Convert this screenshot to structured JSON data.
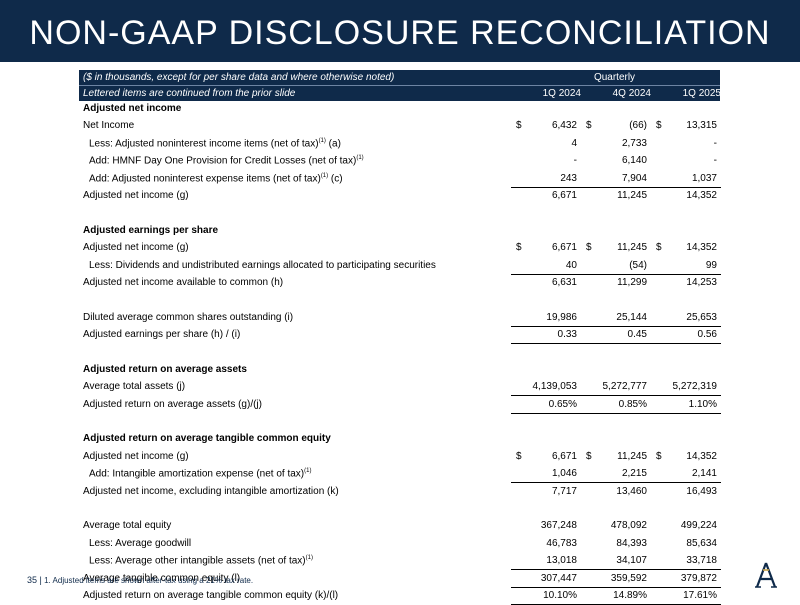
{
  "title": "NON-GAAP DISCLOSURE RECONCILIATION",
  "header": {
    "note1": "($ in thousands, except for per share data and where otherwise noted)",
    "note2": "Lettered items are continued from the prior slide",
    "group_label": "Quarterly",
    "columns": [
      "1Q 2024",
      "4Q 2024",
      "1Q 2025"
    ]
  },
  "rows": [
    {
      "label": "Adjusted net income",
      "bold": true
    },
    {
      "label": "Net Income",
      "cur": "$",
      "values": [
        "6,432",
        "(66)",
        "13,315"
      ]
    },
    {
      "label": "Less: Adjusted noninterest income items (net of tax)",
      "sup": "(1)",
      "suffix": " (a)",
      "indent": true,
      "values": [
        "4",
        "2,733",
        "-"
      ]
    },
    {
      "label": "Add: HMNF Day One Provision for Credit Losses (net of tax)",
      "sup": "(1)",
      "indent": true,
      "values": [
        "-",
        "6,140",
        "-"
      ]
    },
    {
      "label": "Add: Adjusted noninterest expense items (net of tax)",
      "sup": "(1)",
      "suffix": " (c)",
      "indent": true,
      "values": [
        "243",
        "7,904",
        "1,037"
      ],
      "underline": true
    },
    {
      "label": "Adjusted net income (g)",
      "values": [
        "6,671",
        "11,245",
        "14,352"
      ]
    },
    {
      "label": ""
    },
    {
      "label": "Adjusted earnings per share",
      "bold": true
    },
    {
      "label": "Adjusted net income (g)",
      "cur": "$",
      "values": [
        "6,671",
        "11,245",
        "14,352"
      ]
    },
    {
      "label": "Less: Dividends and undistributed earnings allocated to participating securities",
      "indent": true,
      "values": [
        "40",
        "(54)",
        "99"
      ],
      "underline": true
    },
    {
      "label": "Adjusted net income available to common (h)",
      "values": [
        "6,631",
        "11,299",
        "14,253"
      ]
    },
    {
      "label": ""
    },
    {
      "label": "Diluted average common shares outstanding (i)",
      "values": [
        "19,986",
        "25,144",
        "25,653"
      ],
      "underline": true
    },
    {
      "label": "Adjusted earnings per share (h) / (i)",
      "values": [
        "0.33",
        "0.45",
        "0.56"
      ],
      "underline": true
    },
    {
      "label": ""
    },
    {
      "label": "Adjusted return on average assets",
      "bold": true
    },
    {
      "label": "Average total assets (j)",
      "values": [
        "4,139,053",
        "5,272,777",
        "5,272,319"
      ],
      "underline": true
    },
    {
      "label": "Adjusted return on average assets (g)/(j)",
      "values": [
        "0.65%",
        "0.85%",
        "1.10%"
      ],
      "underline": true
    },
    {
      "label": ""
    },
    {
      "label": "Adjusted return on average tangible common equity",
      "bold": true
    },
    {
      "label": "Adjusted net income (g)",
      "cur": "$",
      "values": [
        "6,671",
        "11,245",
        "14,352"
      ]
    },
    {
      "label": "Add: Intangible amortization expense (net of tax)",
      "sup": "(1)",
      "indent": true,
      "values": [
        "1,046",
        "2,215",
        "2,141"
      ],
      "underline": true
    },
    {
      "label": "Adjusted net income, excluding intangible amortization (k)",
      "values": [
        "7,717",
        "13,460",
        "16,493"
      ]
    },
    {
      "label": ""
    },
    {
      "label": "Average total equity",
      "values": [
        "367,248",
        "478,092",
        "499,224"
      ]
    },
    {
      "label": "Less: Average goodwill",
      "indent": true,
      "values": [
        "46,783",
        "84,393",
        "85,634"
      ]
    },
    {
      "label": "Less: Average other intangible assets (net of tax)",
      "sup": "(1)",
      "indent": true,
      "values": [
        "13,018",
        "34,107",
        "33,718"
      ],
      "underline": true
    },
    {
      "label": "Average tangible common equity (l)",
      "values": [
        "307,447",
        "359,592",
        "379,872"
      ],
      "underline": true
    },
    {
      "label": "Adjusted return on average tangible common equity (k)/(l)",
      "values": [
        "10.10%",
        "14.89%",
        "17.61%"
      ],
      "underline": true
    }
  ],
  "footer": {
    "page": "35 |",
    "note": "1. Adjusted items are shown after-tax using a 21% tax rate."
  },
  "logo_letter": "A",
  "colors": {
    "navy": "#0f2a4a",
    "white": "#ffffff"
  }
}
